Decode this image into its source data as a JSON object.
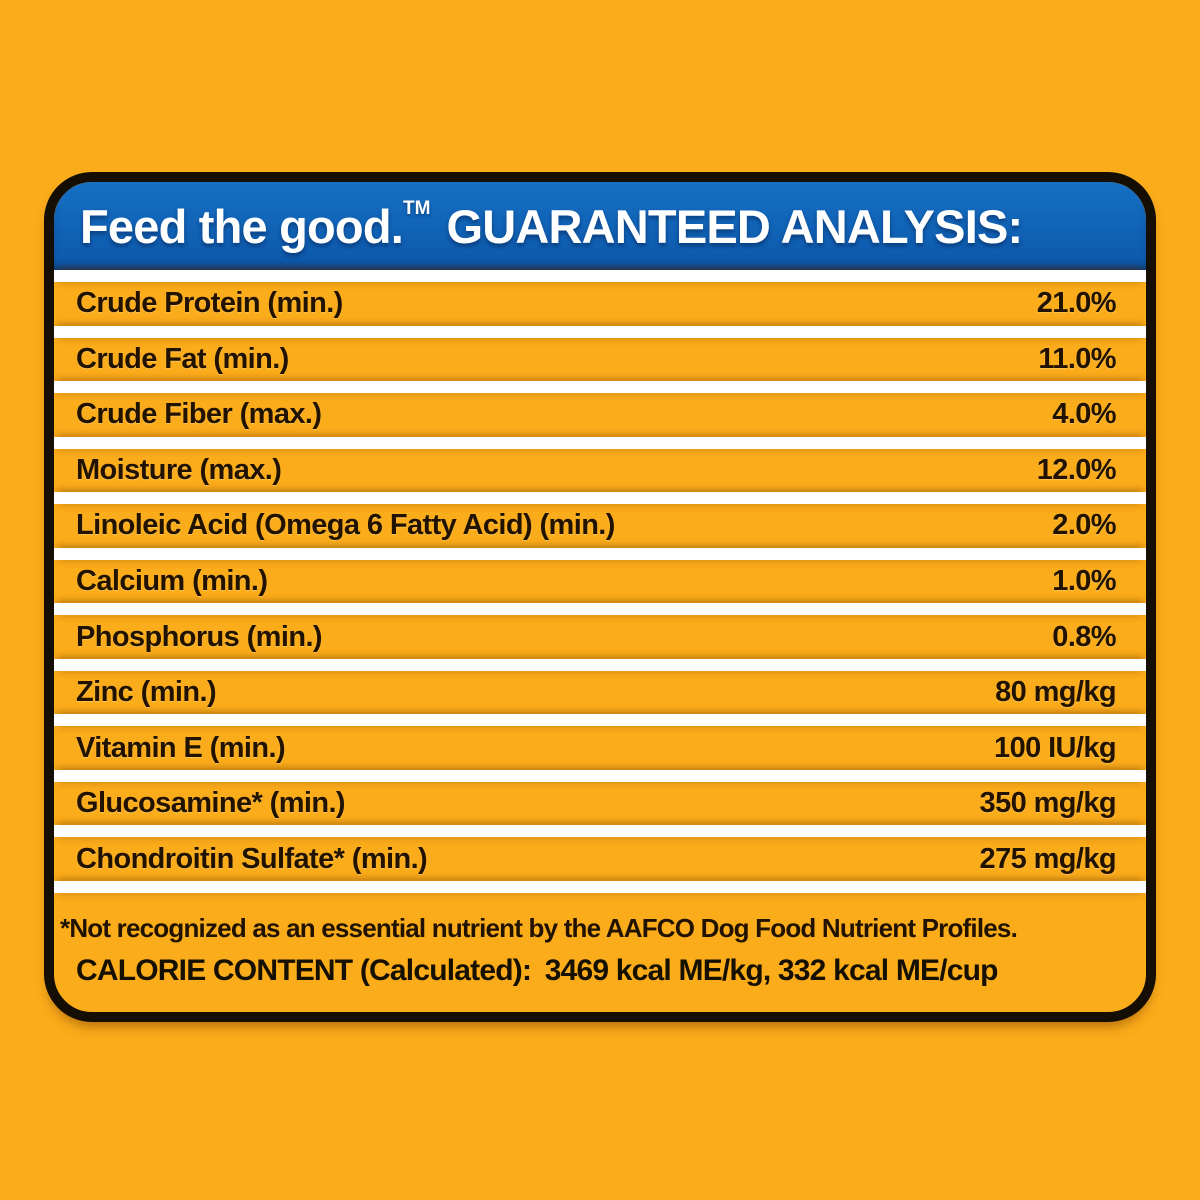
{
  "panel": {
    "title": {
      "brand": "Feed the good.",
      "tm": "TM",
      "heading": "GUARANTEED ANALYSIS:"
    },
    "rows": [
      {
        "label": "Crude Protein (min.)",
        "value": "21.0%"
      },
      {
        "label": "Crude Fat (min.)",
        "value": "11.0%"
      },
      {
        "label": "Crude Fiber (max.)",
        "value": "4.0%"
      },
      {
        "label": "Moisture (max.)",
        "value": "12.0%"
      },
      {
        "label": "Linoleic Acid (Omega 6 Fatty Acid) (min.)",
        "value": "2.0%"
      },
      {
        "label": "Calcium (min.)",
        "value": "1.0%"
      },
      {
        "label": "Phosphorus (min.)",
        "value": "0.8%"
      },
      {
        "label": "Zinc (min.)",
        "value": "80 mg/kg"
      },
      {
        "label": "Vitamin E (min.)",
        "value": "100 IU/kg"
      },
      {
        "label": "Glucosamine* (min.)",
        "value": "350 mg/kg"
      },
      {
        "label": "Chondroitin Sulfate* (min.)",
        "value": "275 mg/kg"
      }
    ],
    "footnote": "*Not recognized as an essential nutrient by the AAFCO Dog Food Nutrient Profiles.",
    "calorie_label": "CALORIE CONTENT (Calculated):",
    "calorie_value": "3469 kcal ME/kg, 332 kcal ME/cup"
  },
  "colors": {
    "background_orange": "#fbac1a",
    "header_blue": "#0e5fb4",
    "border_black": "#140e04",
    "text_dark": "#211300",
    "separator_white": "#ffffff"
  }
}
